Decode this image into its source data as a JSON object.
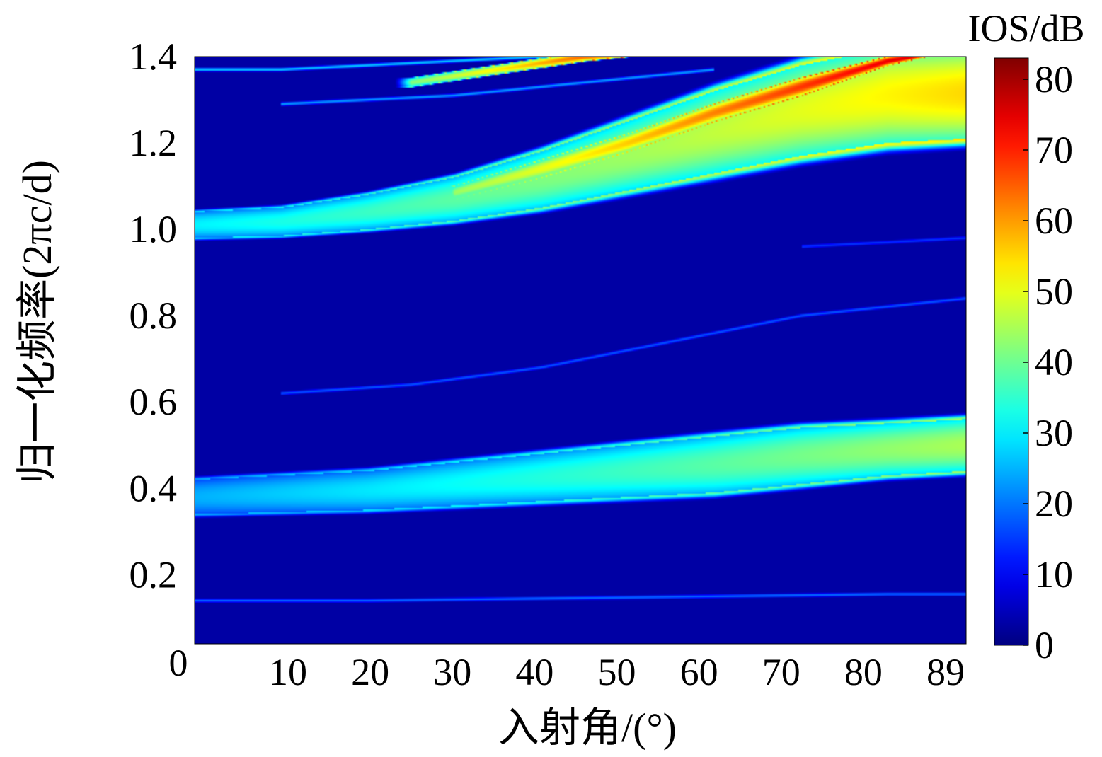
{
  "chart_data": {
    "type": "heatmap",
    "xlabel": "入射角/(°)",
    "ylabel": "归一化频率(2πc/d)",
    "colorbar_label": "IOS/dB",
    "x_ticks": [
      "0",
      "10",
      "20",
      "30",
      "40",
      "50",
      "60",
      "70",
      "80",
      "89"
    ],
    "y_ticks": [
      "0.2",
      "0.4",
      "0.6",
      "0.8",
      "1.0",
      "1.2",
      "1.4"
    ],
    "colorbar_ticks": [
      "0",
      "10",
      "20",
      "30",
      "40",
      "50",
      "60",
      "70",
      "80"
    ],
    "xlim": [
      0,
      89
    ],
    "ylim": [
      0.04,
      1.4
    ],
    "clim": [
      0,
      83
    ],
    "colormap": "jet",
    "background_value": 3,
    "bands": [
      {
        "name": "",
        "x": [
          0,
          10,
          20,
          30,
          40,
          50,
          60,
          70,
          80,
          89
        ],
        "lower": [
          0.34,
          0.345,
          0.35,
          0.36,
          0.37,
          0.38,
          0.39,
          0.41,
          0.43,
          0.44
        ],
        "upper": [
          0.42,
          0.43,
          0.44,
          0.46,
          0.48,
          0.5,
          0.52,
          0.54,
          0.55,
          0.56
        ],
        "peak": 45
      },
      {
        "name": "",
        "x": [
          0,
          10,
          20,
          30,
          40,
          50,
          60,
          70,
          80,
          89
        ],
        "lower": [
          0.98,
          0.985,
          1.0,
          1.02,
          1.05,
          1.09,
          1.13,
          1.17,
          1.2,
          1.21
        ],
        "upper": [
          1.04,
          1.05,
          1.08,
          1.12,
          1.18,
          1.25,
          1.32,
          1.38,
          1.42,
          1.42
        ],
        "peak": 55
      },
      {
        "name": "",
        "x": [
          30,
          40,
          50,
          60,
          70,
          80,
          89
        ],
        "lower": [
          1.07,
          1.12,
          1.18,
          1.25,
          1.31,
          1.38,
          1.42
        ],
        "upper": [
          1.1,
          1.16,
          1.22,
          1.29,
          1.35,
          1.4,
          1.42
        ],
        "peak": 80
      },
      {
        "name": "",
        "x": [
          25,
          35,
          45,
          55
        ],
        "lower": [
          1.33,
          1.36,
          1.39,
          1.41
        ],
        "upper": [
          1.35,
          1.38,
          1.41,
          1.42
        ],
        "peak": 76
      }
    ],
    "lines": [
      {
        "x": [
          0,
          20,
          40,
          60,
          80,
          89
        ],
        "y": [
          0.14,
          0.14,
          0.145,
          0.15,
          0.155,
          0.155
        ],
        "peak": 20
      },
      {
        "x": [
          10,
          25,
          40,
          55,
          70,
          89
        ],
        "y": [
          0.62,
          0.64,
          0.68,
          0.74,
          0.8,
          0.84
        ],
        "peak": 18
      },
      {
        "x": [
          0,
          10,
          20,
          30,
          40,
          50
        ],
        "y": [
          1.37,
          1.37,
          1.38,
          1.39,
          1.4,
          1.41
        ],
        "peak": 28
      },
      {
        "x": [
          10,
          20,
          30,
          40,
          50,
          60
        ],
        "y": [
          1.29,
          1.3,
          1.31,
          1.33,
          1.35,
          1.37
        ],
        "peak": 24
      },
      {
        "x": [
          70,
          80,
          89
        ],
        "y": [
          1.2,
          1.21,
          1.21
        ],
        "peak": 30
      },
      {
        "x": [
          70,
          80,
          89
        ],
        "y": [
          0.96,
          0.97,
          0.98
        ],
        "peak": 15
      }
    ]
  }
}
